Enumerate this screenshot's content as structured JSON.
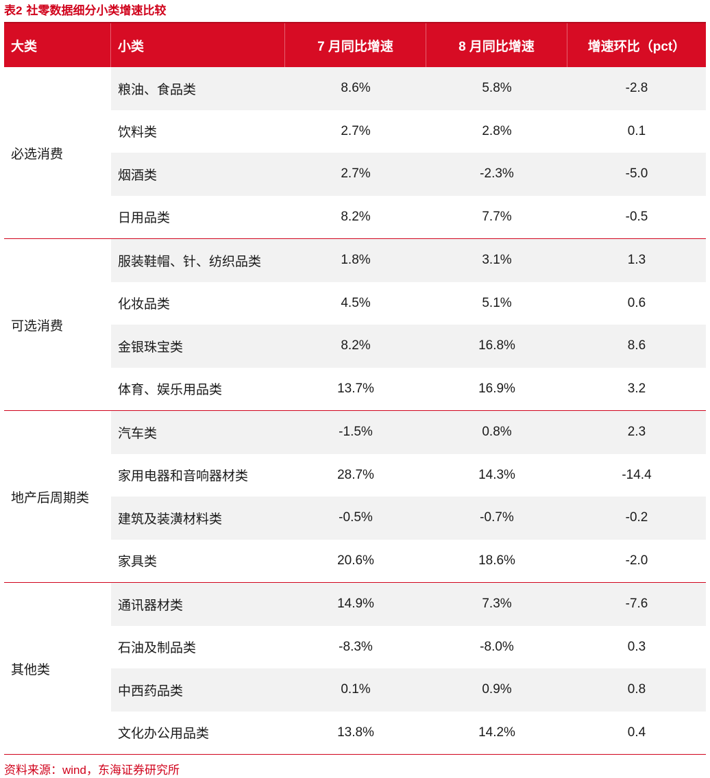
{
  "title": {
    "number": "表2",
    "text": "社零数据细分小类增速比较"
  },
  "header": [
    "大类",
    "小类",
    "7 月同比增速",
    "8 月同比增速",
    "增速环比（pct）"
  ],
  "groups": [
    {
      "name": "必选消费",
      "rows": [
        {
          "sub": "粮油、食品类",
          "jul": "8.6%",
          "aug": "5.8%",
          "diff": "-2.8"
        },
        {
          "sub": "饮料类",
          "jul": "2.7%",
          "aug": "2.8%",
          "diff": "0.1"
        },
        {
          "sub": "烟酒类",
          "jul": "2.7%",
          "aug": "-2.3%",
          "diff": "-5.0"
        },
        {
          "sub": "日用品类",
          "jul": "8.2%",
          "aug": "7.7%",
          "diff": "-0.5"
        }
      ]
    },
    {
      "name": "可选消费",
      "rows": [
        {
          "sub": "服装鞋帽、针、纺织品类",
          "jul": "1.8%",
          "aug": "3.1%",
          "diff": "1.3"
        },
        {
          "sub": "化妆品类",
          "jul": "4.5%",
          "aug": "5.1%",
          "diff": "0.6"
        },
        {
          "sub": "金银珠宝类",
          "jul": "8.2%",
          "aug": "16.8%",
          "diff": "8.6"
        },
        {
          "sub": "体育、娱乐用品类",
          "jul": "13.7%",
          "aug": "16.9%",
          "diff": "3.2"
        }
      ]
    },
    {
      "name": "地产后周期类",
      "rows": [
        {
          "sub": "汽车类",
          "jul": "-1.5%",
          "aug": "0.8%",
          "diff": "2.3"
        },
        {
          "sub": "家用电器和音响器材类",
          "jul": "28.7%",
          "aug": "14.3%",
          "diff": "-14.4"
        },
        {
          "sub": "建筑及装潢材料类",
          "jul": "-0.5%",
          "aug": "-0.7%",
          "diff": "-0.2"
        },
        {
          "sub": "家具类",
          "jul": "20.6%",
          "aug": "18.6%",
          "diff": "-2.0"
        }
      ]
    },
    {
      "name": "其他类",
      "rows": [
        {
          "sub": "通讯器材类",
          "jul": "14.9%",
          "aug": "7.3%",
          "diff": "-7.6"
        },
        {
          "sub": "石油及制品类",
          "jul": "-8.3%",
          "aug": "-8.0%",
          "diff": "0.3"
        },
        {
          "sub": "中西药品类",
          "jul": "0.1%",
          "aug": "0.9%",
          "diff": "0.8"
        },
        {
          "sub": "文化办公用品类",
          "jul": "13.8%",
          "aug": "14.2%",
          "diff": "0.4"
        }
      ]
    }
  ],
  "footer": "资料来源：wind，东海证券研究所",
  "colors": {
    "accent": "#d70c24",
    "row_shade": "#f2f2f2"
  }
}
